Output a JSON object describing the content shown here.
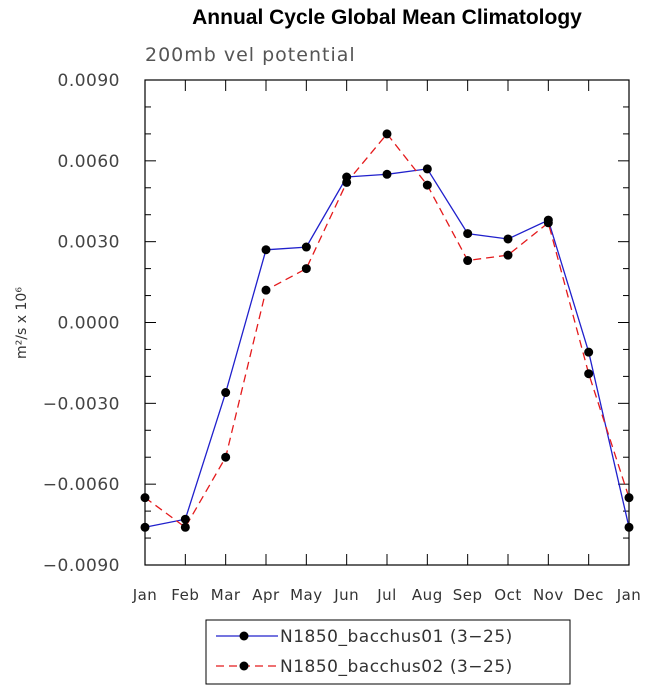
{
  "chart_data": {
    "type": "line",
    "title": "Annual Cycle Global Mean Climatology",
    "subtitle": "200mb vel potential",
    "ylabel": "m²/s x 10⁶",
    "categories": [
      "Jan",
      "Feb",
      "Mar",
      "Apr",
      "May",
      "Jun",
      "Jul",
      "Aug",
      "Sep",
      "Oct",
      "Nov",
      "Dec",
      "Jan"
    ],
    "ylim": [
      -0.009,
      0.009
    ],
    "yticks": [
      "0.0090",
      "0.0060",
      "0.0030",
      "0.0000",
      "−0.0030",
      "−0.0060",
      "−0.0090"
    ],
    "ytick_values": [
      0.009,
      0.006,
      0.003,
      0.0,
      -0.003,
      -0.006,
      -0.009
    ],
    "grid": false,
    "legend_position": "bottom",
    "series": [
      {
        "name": "N1850_bacchus01 (3−25)",
        "color": "#2020cc",
        "dash": "solid",
        "values": [
          -0.0076,
          -0.0073,
          -0.0026,
          0.0027,
          0.0028,
          0.0054,
          0.0055,
          0.0057,
          0.0033,
          0.0031,
          0.0038,
          -0.0011,
          -0.0076
        ]
      },
      {
        "name": "N1850_bacchus02 (3−25)",
        "color": "#e41a1c",
        "dash": "dashed",
        "values": [
          -0.0065,
          -0.0076,
          -0.005,
          0.0012,
          0.002,
          0.0052,
          0.007,
          0.0051,
          0.0023,
          0.0025,
          0.0037,
          -0.0019,
          -0.0065
        ]
      }
    ]
  }
}
